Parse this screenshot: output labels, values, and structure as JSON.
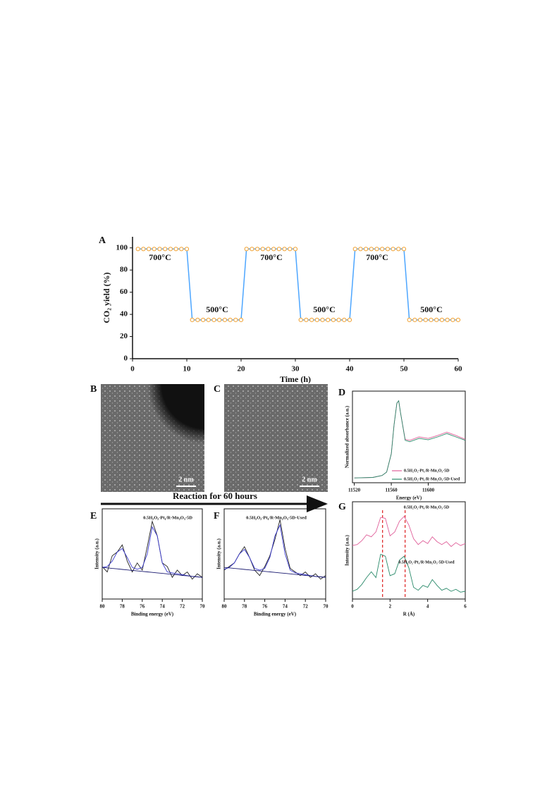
{
  "panel_labels": [
    "A",
    "B",
    "C",
    "D",
    "E",
    "F",
    "G"
  ],
  "images": [
    {
      "scale_bar": "2 nm"
    },
    {
      "scale_bar": "2 nm"
    }
  ],
  "arrow_text": "Reaction for 60 hours",
  "chart_data": [
    {
      "type": "line",
      "xlabel": "Time (h)",
      "ylabel": "CO₂ yield (%)",
      "xlim": [
        0,
        60
      ],
      "ylim": [
        0,
        110
      ],
      "xticks": [
        0,
        10,
        20,
        30,
        40,
        50,
        60
      ],
      "yticks": [
        0,
        20,
        40,
        60,
        80,
        100
      ],
      "annotations": [
        "700°C",
        "500°C",
        "700°C",
        "500°C",
        "700°C",
        "500°C"
      ],
      "x": [
        1,
        2,
        3,
        4,
        5,
        6,
        7,
        8,
        9,
        10,
        11,
        12,
        13,
        14,
        15,
        16,
        17,
        18,
        19,
        20,
        21,
        22,
        23,
        24,
        25,
        26,
        27,
        28,
        29,
        30,
        31,
        32,
        33,
        34,
        35,
        36,
        37,
        38,
        39,
        40,
        41,
        42,
        43,
        44,
        45,
        46,
        47,
        48,
        49,
        50,
        51,
        52,
        53,
        54,
        55,
        56,
        57,
        58,
        59,
        60
      ],
      "series": [
        {
          "color": "#4da6ff",
          "marker_color": "#f0a030",
          "markers": true,
          "values": [
            99,
            99,
            99,
            99,
            99,
            99,
            99,
            99,
            99,
            99,
            35,
            35,
            35,
            35,
            35,
            35,
            35,
            35,
            35,
            35,
            99,
            99,
            99,
            99,
            99,
            99,
            99,
            99,
            99,
            99,
            35,
            35,
            35,
            35,
            35,
            35,
            35,
            35,
            35,
            35,
            99,
            99,
            99,
            99,
            99,
            99,
            99,
            99,
            99,
            99,
            35,
            35,
            35,
            35,
            35,
            35,
            35,
            35,
            35,
            35
          ]
        }
      ]
    },
    {
      "type": "line",
      "xlabel": "Energy (eV)",
      "ylabel": "Normalized absorbance (a.u.)",
      "xlim": [
        11518,
        11640
      ],
      "ylim": [
        -0.1,
        1.8
      ],
      "xticks": [
        11520,
        11560,
        11600
      ],
      "x": [
        11520,
        11540,
        11550,
        11555,
        11560,
        11563,
        11566,
        11568,
        11570,
        11575,
        11580,
        11590,
        11600,
        11610,
        11620,
        11630,
        11640
      ],
      "series": [
        {
          "name": "0.5H₂O₂-Pt₁/R-Mn₂O₃-5D",
          "color": "#e0609a",
          "values": [
            0,
            0.01,
            0.05,
            0.12,
            0.5,
            1.1,
            1.55,
            1.6,
            1.35,
            0.8,
            0.78,
            0.85,
            0.82,
            0.88,
            0.95,
            0.88,
            0.8
          ]
        },
        {
          "name": "0.5H₂O₂-Pt₁/R-Mn₂O₃-5D-Used",
          "color": "#2a8a6a",
          "values": [
            0,
            0.01,
            0.05,
            0.12,
            0.5,
            1.1,
            1.55,
            1.6,
            1.35,
            0.78,
            0.75,
            0.82,
            0.79,
            0.85,
            0.92,
            0.85,
            0.78
          ]
        }
      ]
    },
    {
      "type": "line",
      "xlabel": "Binding energy (eV)",
      "ylabel": "Intensity (a.u.)",
      "title": "0.5H₂O₂-Pt₁/R-Mn₂O₃-5D",
      "xlim": [
        80,
        70
      ],
      "ylim": [
        0,
        10
      ],
      "xticks": [
        80,
        78,
        76,
        74,
        72,
        70
      ],
      "x": [
        80,
        79.5,
        79,
        78.5,
        78,
        77.5,
        77,
        76.5,
        76,
        75.5,
        75,
        74.5,
        74,
        73.5,
        73,
        72.5,
        72,
        71.5,
        71,
        70.5,
        70
      ],
      "series": [
        {
          "color": "#222222",
          "values": [
            3.6,
            3.0,
            4.8,
            5.2,
            6.0,
            4.2,
            3.0,
            4.0,
            3.2,
            5.8,
            8.6,
            7.0,
            4.0,
            3.6,
            2.4,
            3.2,
            2.6,
            3.0,
            2.2,
            2.8,
            2.4
          ]
        },
        {
          "color": "#3a3ad0",
          "values": [
            3.5,
            3.6,
            4.2,
            5.2,
            5.6,
            4.6,
            3.5,
            3.3,
            3.5,
            5.0,
            8.0,
            7.0,
            4.0,
            3.0,
            2.9,
            2.8,
            2.7,
            2.6,
            2.5,
            2.45,
            2.4
          ]
        },
        {
          "color": "#1a1a70",
          "values": [
            3.5,
            3.45,
            3.39,
            3.34,
            3.28,
            3.23,
            3.17,
            3.12,
            3.06,
            3.01,
            2.95,
            2.9,
            2.84,
            2.79,
            2.73,
            2.68,
            2.62,
            2.57,
            2.51,
            2.46,
            2.4
          ]
        }
      ]
    },
    {
      "type": "line",
      "xlabel": "Binding energy (eV)",
      "ylabel": "Intensity (a.u.)",
      "title": "0.5H₂O₂-Pt₁/R-Mn₂O₃-5D-Used",
      "xlim": [
        80,
        70
      ],
      "ylim": [
        0,
        10
      ],
      "xticks": [
        80,
        78,
        76,
        74,
        72,
        70
      ],
      "x": [
        80,
        79.5,
        79,
        78.5,
        78,
        77.5,
        77,
        76.5,
        76,
        75.5,
        75,
        74.5,
        74,
        73.5,
        73,
        72.5,
        72,
        71.5,
        71,
        70.5,
        70
      ],
      "series": [
        {
          "color": "#222222",
          "values": [
            3.2,
            3.6,
            4.0,
            5.0,
            5.8,
            4.6,
            3.2,
            2.6,
            3.6,
            4.8,
            6.6,
            8.8,
            5.6,
            3.4,
            3.0,
            2.6,
            3.0,
            2.4,
            2.8,
            2.2,
            2.6
          ]
        },
        {
          "color": "#3a3ad0",
          "values": [
            3.3,
            3.5,
            4.0,
            5.0,
            5.5,
            4.6,
            3.4,
            3.2,
            3.4,
            4.6,
            7.0,
            8.2,
            5.0,
            3.2,
            2.9,
            2.8,
            2.7,
            2.6,
            2.5,
            2.45,
            2.4
          ]
        },
        {
          "color": "#1a1a70",
          "values": [
            3.5,
            3.45,
            3.39,
            3.34,
            3.28,
            3.23,
            3.17,
            3.12,
            3.06,
            3.01,
            2.95,
            2.9,
            2.84,
            2.79,
            2.73,
            2.68,
            2.62,
            2.57,
            2.51,
            2.46,
            2.4
          ]
        }
      ]
    },
    {
      "type": "line",
      "xlabel": "R (Å)",
      "ylabel": "Intensity (a.u.)",
      "xlim": [
        0,
        6
      ],
      "ylim": [
        0,
        10
      ],
      "xticks": [
        0,
        2,
        4,
        6
      ],
      "reference_lines": [
        1.6,
        2.8
      ],
      "reference_color": "#e03030",
      "x": [
        0,
        0.25,
        0.5,
        0.75,
        1,
        1.25,
        1.5,
        1.75,
        2,
        2.25,
        2.5,
        2.75,
        3,
        3.25,
        3.5,
        3.75,
        4,
        4.25,
        4.5,
        4.75,
        5,
        5.25,
        5.5,
        5.75,
        6
      ],
      "series": [
        {
          "name": "0.5H₂O₂-Pt₁/R-Mn₂O₃-5D",
          "color": "#e0609a",
          "values": [
            5.5,
            5.6,
            6.0,
            6.6,
            6.4,
            6.9,
            8.4,
            8.3,
            6.5,
            6.9,
            8.0,
            8.5,
            7.6,
            6.2,
            5.6,
            6.0,
            5.7,
            6.4,
            5.9,
            5.6,
            5.9,
            5.4,
            5.8,
            5.5,
            5.7
          ]
        },
        {
          "name": "0.5H₂O₂-Pt₁/R-Mn₂O₃-5D-Used",
          "color": "#2a8a6a",
          "values": [
            0.8,
            1.0,
            1.5,
            2.2,
            2.8,
            2.2,
            4.6,
            4.4,
            2.4,
            2.6,
            4.0,
            4.4,
            3.2,
            1.2,
            0.9,
            1.4,
            1.2,
            2.0,
            1.4,
            0.9,
            1.1,
            0.8,
            1.0,
            0.7,
            0.8
          ]
        }
      ]
    }
  ]
}
